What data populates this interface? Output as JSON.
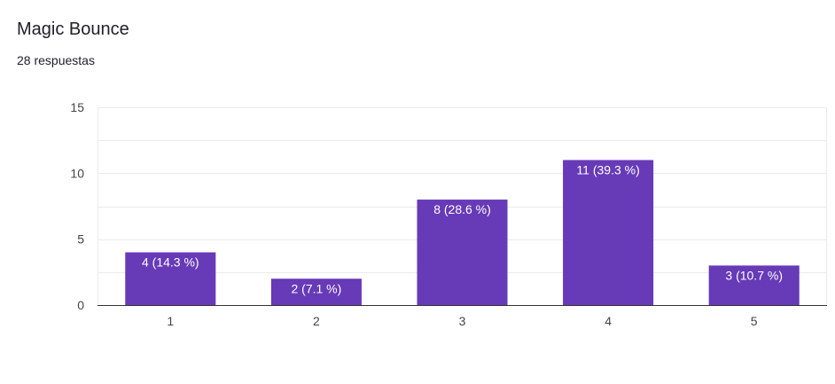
{
  "header": {
    "title": "Magic Bounce",
    "response_count": "28 respuestas"
  },
  "colors": {
    "bar": "#673ab7",
    "grid": "#ebebeb",
    "axis": "#333333",
    "tick_text": "#444444",
    "bar_label": "#ffffff"
  },
  "chart_data": {
    "type": "bar",
    "title": "Magic Bounce",
    "xlabel": "",
    "ylabel": "",
    "categories": [
      "1",
      "2",
      "3",
      "4",
      "5"
    ],
    "values": [
      4,
      2,
      8,
      11,
      3
    ],
    "data_labels": [
      "4 (14.3 %)",
      "2 (7.1 %)",
      "8 (28.6 %)",
      "11 (39.3 %)",
      "3 (10.7 %)"
    ],
    "ylim": [
      0,
      15
    ],
    "yticks": [
      0,
      5,
      10,
      15
    ],
    "grid": true,
    "legend": "none"
  }
}
